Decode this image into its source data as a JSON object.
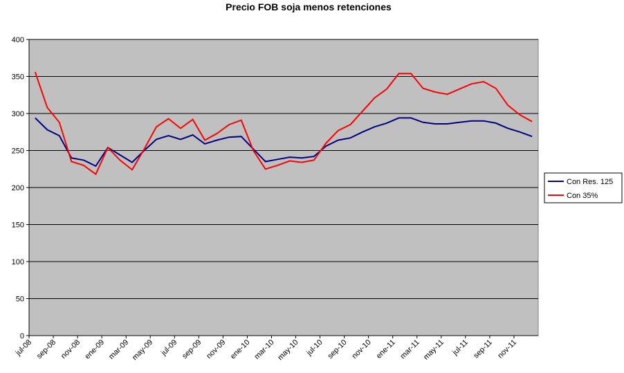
{
  "chart_data": {
    "type": "line",
    "title": "Precio FOB soja menos retenciones",
    "categories": [
      "jul-08",
      null,
      "sep-08",
      null,
      "nov-08",
      null,
      "ene-09",
      null,
      "mar-09",
      null,
      "may-09",
      null,
      "jul-09",
      null,
      "sep-09",
      null,
      "nov-09",
      null,
      "ene-10",
      null,
      "mar-10",
      null,
      "may-10",
      null,
      "jul-10",
      null,
      "sep-10",
      null,
      "nov-10",
      null,
      "ene-11",
      null,
      "mar-11",
      null,
      "may-11",
      null,
      "jul-11",
      null,
      "sep-11",
      null,
      "nov-11",
      null
    ],
    "series": [
      {
        "name": "Con Res. 125",
        "color": "#000080",
        "values": [
          294,
          278,
          270,
          240,
          237,
          229,
          254,
          244,
          234,
          250,
          265,
          270,
          265,
          271,
          259,
          264,
          268,
          269,
          252,
          235,
          238,
          241,
          240,
          242,
          256,
          264,
          267,
          275,
          282,
          287,
          294,
          294,
          288,
          286,
          286,
          288,
          290,
          290,
          287,
          280,
          275,
          269
        ]
      },
      {
        "name": "Con 35%",
        "color": "#ff0000",
        "values": [
          356,
          308,
          288,
          235,
          230,
          218,
          254,
          237,
          224,
          252,
          282,
          293,
          280,
          292,
          264,
          273,
          285,
          291,
          250,
          225,
          230,
          236,
          234,
          237,
          260,
          277,
          285,
          303,
          321,
          333,
          354,
          354,
          334,
          329,
          326,
          333,
          340,
          343,
          334,
          311,
          298,
          289
        ]
      }
    ],
    "ylim": [
      0,
      400
    ],
    "yticks": [
      0,
      50,
      100,
      150,
      200,
      250,
      300,
      350,
      400
    ],
    "grid": true,
    "legend": "right",
    "plot_background": "#c0c0c0"
  }
}
